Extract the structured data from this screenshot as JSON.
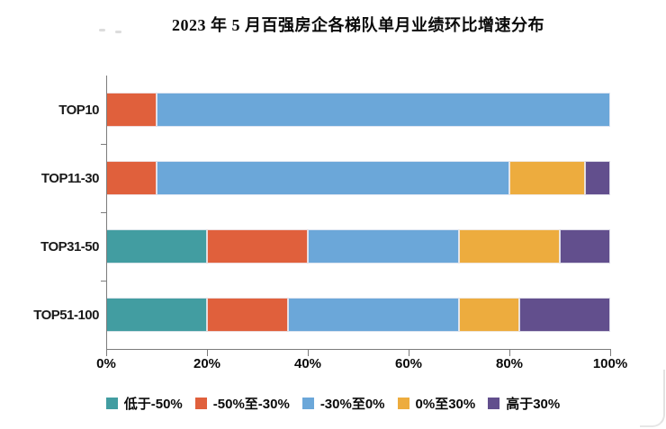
{
  "page": {
    "background": "#ffffff"
  },
  "chart_data": {
    "type": "bar",
    "orientation": "horizontal",
    "stacked": true,
    "title": "2023 年 5 月百强房企各梯队单月业绩环比增速分布",
    "categories": [
      "TOP10",
      "TOP11-30",
      "TOP31-50",
      "TOP51-100"
    ],
    "series": [
      {
        "name": "低于-50%",
        "color": "#429DA1",
        "values": [
          0,
          0,
          20,
          20
        ]
      },
      {
        "name": "-50%至-30%",
        "color": "#E0603C",
        "values": [
          10,
          10,
          20,
          16
        ]
      },
      {
        "name": "-30%至0%",
        "color": "#6BA7D9",
        "values": [
          90,
          70,
          30,
          34
        ]
      },
      {
        "name": "0%至30%",
        "color": "#EDAC3E",
        "values": [
          0,
          15,
          20,
          12
        ]
      },
      {
        "name": "高于30%",
        "color": "#624F8D",
        "values": [
          0,
          5,
          10,
          18
        ]
      }
    ],
    "x_ticks": [
      "0%",
      "20%",
      "40%",
      "60%",
      "80%",
      "100%"
    ],
    "xlim": [
      0,
      100
    ],
    "unit": "%",
    "legend_position": "bottom",
    "grid": false,
    "axis_color": "#7c7c7c"
  }
}
